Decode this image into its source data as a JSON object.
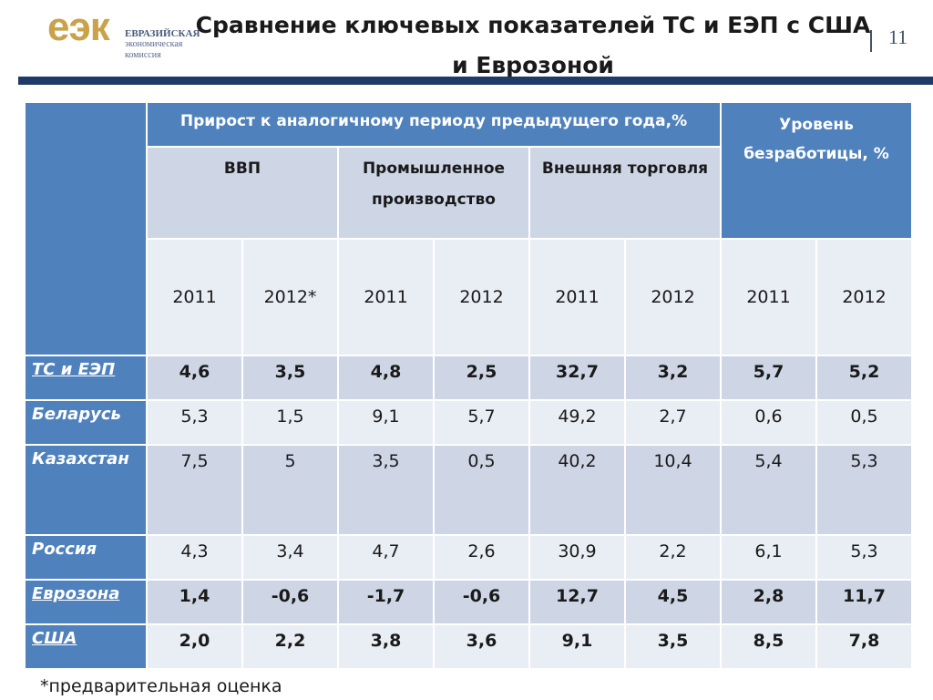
{
  "logo": {
    "mark": "еэк",
    "line1": "ЕВРАЗИЙСКАЯ",
    "line2": "экономическая",
    "line3": "комиссия"
  },
  "title": {
    "line1": "Сравнение ключевых показателей ТС и ЕЭП с США",
    "line2": "и Еврозоной"
  },
  "page_number": "11",
  "table": {
    "growth_header": "Прирост к аналогичному периоду предыдущего года,%",
    "unemployment_header": "Уровень безработицы, %",
    "groups": [
      "ВВП",
      "Промышленное производство",
      "Внешняя торговля"
    ],
    "years": [
      "2011",
      "2012*",
      "2011",
      "2012",
      "2011",
      "2012",
      "2011",
      "2012"
    ],
    "rows": [
      {
        "label": "ТС и ЕЭП",
        "values": [
          "4,6",
          "3,5",
          "4,8",
          "2,5",
          "32,7",
          "3,2",
          "5,7",
          "5,2"
        ]
      },
      {
        "label": "Беларусь",
        "values": [
          "5,3",
          "1,5",
          "9,1",
          "5,7",
          "49,2",
          "2,7",
          "0,6",
          "0,5"
        ]
      },
      {
        "label": "Казахстан",
        "values": [
          "7,5",
          "5",
          "3,5",
          "0,5",
          "40,2",
          "10,4",
          "5,4",
          "5,3"
        ]
      },
      {
        "label": "Россия",
        "values": [
          "4,3",
          "3,4",
          "4,7",
          "2,6",
          "30,9",
          "2,2",
          "6,1",
          "5,3"
        ]
      },
      {
        "label": "Еврозона",
        "values": [
          "1,4",
          "-0,6",
          "-1,7",
          "-0,6",
          "12,7",
          "4,5",
          "2,8",
          "11,7"
        ]
      },
      {
        "label": "США",
        "values": [
          "2,0",
          "2,2",
          "3,8",
          "3,6",
          "9,1",
          "3,5",
          "8,5",
          "7,8"
        ]
      }
    ]
  },
  "footnote": "*предварительная оценка",
  "colors": {
    "header_blue": "#4f81bd",
    "band_dark": "#ced6e6",
    "band_light": "#e9edf4",
    "rule_navy": "#1f3a66"
  }
}
